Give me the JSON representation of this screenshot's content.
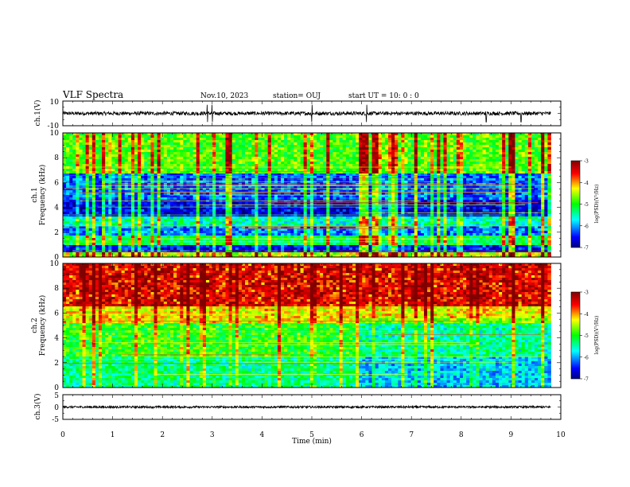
{
  "header": {
    "title": "VLF Spectra",
    "date": "Nov.10, 2023",
    "station": "station= OUJ",
    "start": "start  UT =   10: 0  : 0"
  },
  "chart_data": [
    {
      "type": "line",
      "id": "waveform-ch1",
      "ylabel": "ch.1(V)",
      "ylim": [
        -10,
        10
      ],
      "yticks": [
        "10",
        "-10"
      ],
      "xlim": [
        0,
        10
      ],
      "data_extent_min": [
        0,
        9.8
      ],
      "description_values": {
        "baseline": 0,
        "typical_amplitude": 1.5,
        "spikes_at_min": [
          2.9,
          3.0,
          5.0,
          6.1,
          8.5,
          9.2
        ]
      }
    },
    {
      "type": "heatmap",
      "id": "spectrogram-ch1",
      "ylabel_top": "ch.1",
      "ylabel": "Frequency (kHz)",
      "ylim": [
        0,
        10
      ],
      "yticks": [
        "0",
        "2",
        "4",
        "6",
        "8",
        "10"
      ],
      "xlim": [
        0,
        10
      ],
      "data_extent_min": [
        0,
        9.8
      ],
      "colorbar": {
        "label": "log(PSD)(V²/Hz)",
        "range": [
          -7,
          -3
        ],
        "ticks": [
          "-3",
          "-4",
          "-5",
          "-6",
          "-7"
        ]
      },
      "bands_khz": [
        {
          "from": 0,
          "to": 0.3,
          "level": -4.5
        },
        {
          "from": 0.3,
          "to": 1.0,
          "level": -6.6
        },
        {
          "from": 1.0,
          "to": 1.8,
          "level": -5.3
        },
        {
          "from": 1.8,
          "to": 2.5,
          "level": -6.2
        },
        {
          "from": 2.5,
          "to": 3.3,
          "level": -5.6
        },
        {
          "from": 3.3,
          "to": 4.6,
          "level": -6.7
        },
        {
          "from": 4.6,
          "to": 6.8,
          "level": -6.3
        },
        {
          "from": 6.8,
          "to": 10,
          "level": -4.9
        }
      ]
    },
    {
      "type": "heatmap",
      "id": "spectrogram-ch2",
      "ylabel_top": "ch.2",
      "ylabel": "Frequency (kHz)",
      "ylim": [
        0,
        10
      ],
      "yticks": [
        "0",
        "2",
        "4",
        "6",
        "8",
        "10"
      ],
      "xlim": [
        0,
        10
      ],
      "data_extent_min": [
        0,
        9.8
      ],
      "colorbar": {
        "label": "log(PSD)(V²/Hz)",
        "range": [
          -7,
          -3
        ],
        "ticks": [
          "-3",
          "-4",
          "-5",
          "-6",
          "-7"
        ]
      },
      "bands_khz": [
        {
          "from": 0,
          "to": 2.5,
          "level": -5.4
        },
        {
          "from": 2.5,
          "to": 5.2,
          "level": -5.0
        },
        {
          "from": 5.2,
          "to": 6.5,
          "level": -4.3
        },
        {
          "from": 6.5,
          "to": 10,
          "level": -3.5
        }
      ]
    },
    {
      "type": "line",
      "id": "waveform-ch3",
      "ylabel": "ch.3(V)",
      "ylim": [
        -5,
        5
      ],
      "yticks": [
        "5",
        "0",
        "-5"
      ],
      "xlim": [
        0,
        10
      ],
      "xlabel": "Time  (min)",
      "xticks": [
        "0",
        "1",
        "2",
        "3",
        "4",
        "5",
        "6",
        "7",
        "8",
        "9",
        "10"
      ],
      "data_extent_min": [
        0,
        9.8
      ],
      "description_values": {
        "baseline": 0,
        "typical_amplitude": 0.4
      }
    }
  ],
  "colors": {
    "scale": [
      "#000080",
      "#0000ff",
      "#00ffff",
      "#00ff00",
      "#ffff00",
      "#ff0000",
      "#800000"
    ]
  }
}
